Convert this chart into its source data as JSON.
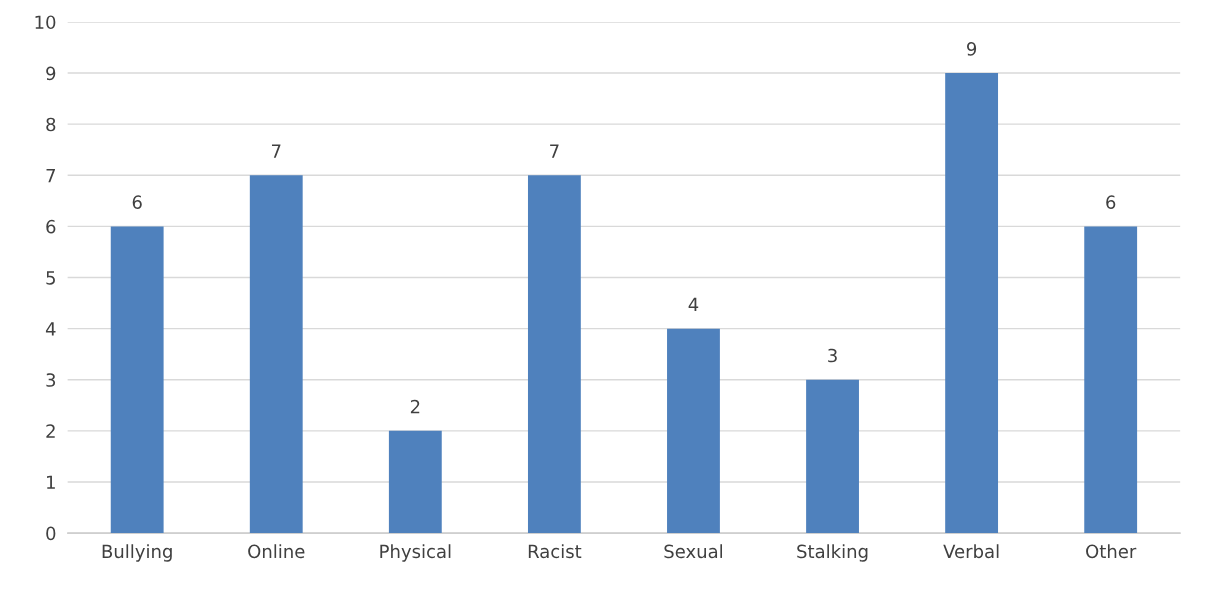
{
  "chart_data": {
    "type": "bar",
    "categories": [
      "Bullying",
      "Online",
      "Physical",
      "Racist",
      "Sexual",
      "Stalking",
      "Verbal",
      "Other"
    ],
    "values": [
      6,
      7,
      2,
      7,
      4,
      3,
      9,
      6
    ],
    "color": "#4f81bd",
    "ylim": [
      0,
      10
    ],
    "yticks": [
      0,
      1,
      2,
      3,
      4,
      5,
      6,
      7,
      8,
      9,
      10
    ],
    "grid": "y",
    "data_labels": true
  }
}
